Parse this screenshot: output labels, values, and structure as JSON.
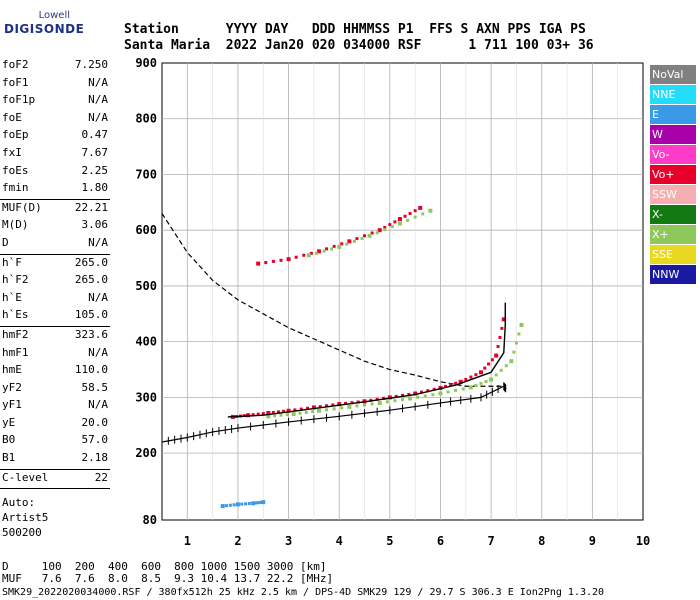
{
  "logo": {
    "line1": "Lowell",
    "line2": "DIGISONDE"
  },
  "header": {
    "row1": "Station      YYYY DAY   DDD HHMMSS P1  FFS S AXN PPS IGA PS",
    "row2": "Santa Maria  2022 Jan20 020 034000 RSF      1 711 100 03+ 36"
  },
  "params": {
    "group1": [
      {
        "k": "foF2",
        "v": "7.250"
      },
      {
        "k": "foF1",
        "v": "N/A"
      },
      {
        "k": "foF1p",
        "v": "N/A"
      },
      {
        "k": "foE",
        "v": "N/A"
      },
      {
        "k": "foEp",
        "v": "0.47"
      },
      {
        "k": "fxI",
        "v": "7.67"
      },
      {
        "k": "foEs",
        "v": "2.25"
      },
      {
        "k": "fmin",
        "v": "1.80"
      }
    ],
    "group2": [
      {
        "k": "MUF(D)",
        "v": "22.21"
      },
      {
        "k": "M(D)",
        "v": "3.06"
      },
      {
        "k": "D",
        "v": "N/A"
      }
    ],
    "group3": [
      {
        "k": "h`F",
        "v": "265.0"
      },
      {
        "k": "h`F2",
        "v": "265.0"
      },
      {
        "k": "h`E",
        "v": "N/A"
      },
      {
        "k": "h`Es",
        "v": "105.0"
      }
    ],
    "group4": [
      {
        "k": "hmF2",
        "v": "323.6"
      },
      {
        "k": "hmF1",
        "v": "N/A"
      },
      {
        "k": "hmE",
        "v": "110.0"
      },
      {
        "k": "yF2",
        "v": "58.5"
      },
      {
        "k": "yF1",
        "v": "N/A"
      },
      {
        "k": "yE",
        "v": "20.0"
      },
      {
        "k": "B0",
        "v": "57.0"
      },
      {
        "k": "B1",
        "v": "2.18"
      }
    ],
    "group5": [
      {
        "k": "C-level",
        "v": "22"
      }
    ],
    "autoscale": [
      "Auto:",
      "Artist5",
      "500200"
    ]
  },
  "legend": [
    {
      "label": "NoVal",
      "color": "#808080"
    },
    {
      "label": "NNE",
      "color": "#22dcfa"
    },
    {
      "label": "E",
      "color": "#3a9ae8"
    },
    {
      "label": "W",
      "color": "#a800a8"
    },
    {
      "label": "Vo-",
      "color": "#ff3cc8"
    },
    {
      "label": "Vo+",
      "color": "#e8002a"
    },
    {
      "label": "SSW",
      "color": "#f4b0b0"
    },
    {
      "label": "X-",
      "color": "#137a13"
    },
    {
      "label": "X+",
      "color": "#8fc85a"
    },
    {
      "label": "SSE",
      "color": "#e8d820"
    },
    {
      "label": "NNW",
      "color": "#1a1aa0"
    }
  ],
  "chart_data": {
    "type": "scatter",
    "title": "",
    "xlabel": "",
    "ylabel": "",
    "xlim": [
      0.5,
      10
    ],
    "ylim": [
      80,
      900
    ],
    "x_ticks": [
      1,
      2,
      3,
      4,
      5,
      6,
      7,
      8,
      9,
      10
    ],
    "y_ticks": [
      80,
      200,
      300,
      400,
      500,
      600,
      700,
      800,
      900
    ],
    "grid": true,
    "series": [
      {
        "name": "Vo+",
        "points": [
          [
            1.9,
            265
          ],
          [
            2.2,
            268
          ],
          [
            2.6,
            272
          ],
          [
            3.0,
            276
          ],
          [
            3.5,
            282
          ],
          [
            4.0,
            288
          ],
          [
            4.5,
            293
          ],
          [
            5.0,
            300
          ],
          [
            5.5,
            307
          ],
          [
            6.0,
            317
          ],
          [
            6.4,
            328
          ],
          [
            6.8,
            345
          ],
          [
            7.1,
            375
          ],
          [
            7.25,
            440
          ]
        ]
      },
      {
        "name": "X+",
        "points": [
          [
            2.6,
            266
          ],
          [
            3.1,
            270
          ],
          [
            3.6,
            276
          ],
          [
            4.2,
            283
          ],
          [
            4.8,
            290
          ],
          [
            5.4,
            298
          ],
          [
            6.0,
            307
          ],
          [
            6.6,
            318
          ],
          [
            7.0,
            332
          ],
          [
            7.4,
            365
          ],
          [
            7.6,
            430
          ]
        ]
      },
      {
        "name": "Vo+",
        "points": [
          [
            2.4,
            540
          ],
          [
            3.0,
            548
          ],
          [
            3.6,
            562
          ],
          [
            4.2,
            580
          ],
          [
            4.8,
            600
          ],
          [
            5.2,
            620
          ],
          [
            5.6,
            640
          ]
        ]
      },
      {
        "name": "X+",
        "points": [
          [
            3.4,
            555
          ],
          [
            4.0,
            570
          ],
          [
            4.6,
            590
          ],
          [
            5.2,
            612
          ],
          [
            5.8,
            635
          ]
        ]
      },
      {
        "name": "E",
        "points": [
          [
            1.7,
            105
          ],
          [
            2.0,
            108
          ],
          [
            2.3,
            110
          ],
          [
            2.5,
            112
          ]
        ]
      }
    ],
    "profile_line": [
      [
        1.8,
        265
      ],
      [
        2.5,
        268
      ],
      [
        3.5,
        280
      ],
      [
        4.5,
        292
      ],
      [
        5.5,
        305
      ],
      [
        6.3,
        322
      ],
      [
        7.0,
        345
      ],
      [
        7.25,
        380
      ],
      [
        7.28,
        430
      ],
      [
        7.28,
        470
      ]
    ],
    "muf_curve": [
      [
        0.5,
        220
      ],
      [
        1,
        228
      ],
      [
        1.5,
        238
      ],
      [
        2,
        245
      ],
      [
        3,
        256
      ],
      [
        4,
        266
      ],
      [
        5,
        277
      ],
      [
        6,
        290
      ],
      [
        6.8,
        300
      ],
      [
        7.25,
        320
      ],
      [
        7.3,
        315
      ]
    ],
    "dashed_curve": [
      [
        0.5,
        630
      ],
      [
        1.0,
        560
      ],
      [
        1.5,
        510
      ],
      [
        2,
        475
      ],
      [
        2.5,
        450
      ],
      [
        3,
        425
      ],
      [
        3.5,
        405
      ],
      [
        4,
        385
      ],
      [
        4.5,
        365
      ],
      [
        5,
        350
      ],
      [
        5.5,
        340
      ],
      [
        6,
        328
      ],
      [
        6.5,
        320
      ],
      [
        7.0,
        320
      ],
      [
        7.25,
        320
      ]
    ]
  },
  "footer": {
    "row1": "D     100  200  400  600  800 1000 1500 3000 [km]",
    "row2": "MUF   7.6  7.6  8.0  8.5  9.3 10.4 13.7 22.2 [MHz]",
    "row3": "SMK29_2022020034000.RSF / 380fx512h 25 kHz 2.5 km / DPS-4D SMK29 129 / 29.7 S 306.3 E Ion2Png 1.3.20"
  }
}
